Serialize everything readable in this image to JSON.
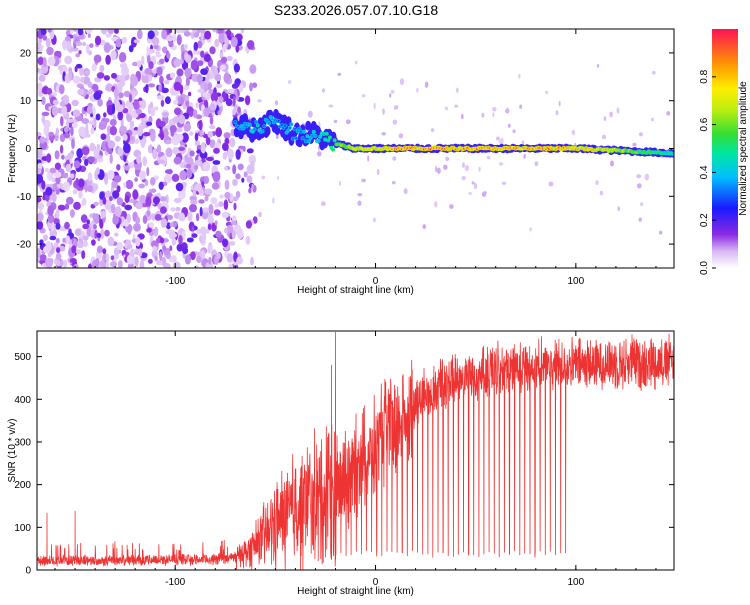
{
  "title": "S233.2026.057.07.10.G18",
  "chart_data": [
    {
      "type": "heatmap",
      "name": "spectrogram",
      "xlabel": "Height of straight line (km)",
      "ylabel": "Frequency (Hz)",
      "xlim": [
        -169,
        149
      ],
      "ylim": [
        -25,
        25
      ],
      "xticks": [
        -100,
        0,
        100
      ],
      "yticks": [
        -20,
        -10,
        0,
        10,
        20
      ],
      "colorbar": {
        "label": "Normalized spectral amplitude",
        "range": [
          0,
          1
        ],
        "ticks": [
          0.0,
          0.2,
          0.4,
          0.6,
          0.8
        ]
      },
      "description_series": [
        {
          "name": "noise region",
          "x_range": [
            -169,
            -67
          ],
          "amplitude_level": 0.15
        },
        {
          "name": "signal line",
          "x": [
            -70,
            -60,
            -50,
            -40,
            -30,
            -20,
            -10,
            0,
            10,
            50,
            100,
            149
          ],
          "freq": [
            5,
            4,
            6,
            3,
            3,
            1,
            0,
            0,
            0,
            0,
            0,
            -1
          ],
          "amplitude": [
            0.35,
            0.4,
            0.35,
            0.35,
            0.4,
            0.6,
            0.75,
            0.8,
            0.95,
            0.95,
            0.9,
            0.45
          ]
        }
      ]
    },
    {
      "type": "line",
      "name": "snr",
      "xlabel": "Height of straight line (km)",
      "ylabel": "SNR (10 * v/v)",
      "xlim": [
        -169,
        149
      ],
      "ylim": [
        0,
        560
      ],
      "xticks": [
        -100,
        0,
        100
      ],
      "yticks": [
        0,
        100,
        200,
        300,
        400,
        500
      ],
      "color": "#ee3333",
      "envelope_x": [
        -169,
        -80,
        -70,
        -60,
        -50,
        -40,
        -30,
        -20,
        -10,
        0,
        10,
        20,
        30,
        40,
        50,
        60,
        80,
        100,
        120,
        149
      ],
      "envelope_y": [
        22,
        25,
        30,
        55,
        110,
        140,
        160,
        190,
        240,
        290,
        340,
        390,
        430,
        450,
        460,
        470,
        480,
        480,
        485,
        490
      ],
      "spikes": [
        {
          "x": -164,
          "y": 133
        },
        {
          "x": -150,
          "y": 138
        },
        {
          "x": -124,
          "y": 58
        },
        {
          "x": -20,
          "y": 557
        },
        {
          "x": -22,
          "y": 480
        }
      ]
    }
  ]
}
